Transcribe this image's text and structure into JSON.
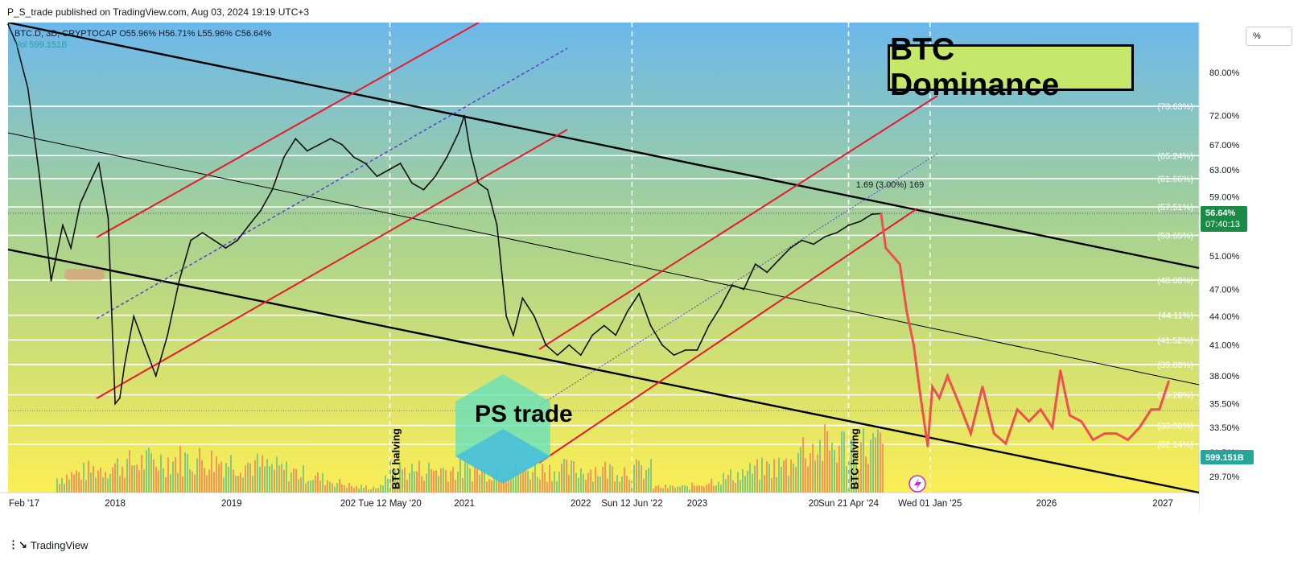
{
  "header": {
    "published": "P_S_trade published on TradingView.com, Aug 03, 2024 19:19 UTC+3"
  },
  "legend": {
    "line1": "BTC.D, 3D, CRYPTOCAP  O55.96%  H56.71%  L55.96%  C56.64%",
    "line2": "Vol  599.151B"
  },
  "title": "BTC Dominance",
  "pct_button": "%",
  "brand": "PS trade",
  "footer": {
    "logo": "⋮↘",
    "name": "TradingView"
  },
  "colors": {
    "bg_top": "#6cb8ec",
    "bg_bottom": "#fbee55",
    "candles": "#111111",
    "projection": "#ef4f4f",
    "channel_red": "#e8192c",
    "trend_black": "#000000",
    "vol_up": "#6fc38a",
    "vol_down": "#f08a5d"
  },
  "chart_data": {
    "type": "line",
    "symbol": "BTC.D",
    "timeframe": "3D",
    "ylim": [
      27.5,
      92
    ],
    "y_scale": "log",
    "x_ticks": [
      "Feb '17",
      "2018",
      "2019",
      "2020",
      "2021",
      "2022",
      "2023",
      "2024",
      "2025",
      "2026",
      "2027"
    ],
    "x_tick_labels_shown": [
      "Feb '17",
      "2018",
      "2019",
      "202",
      "2021",
      "2022",
      "2023",
      "20",
      "2026",
      "2027"
    ],
    "y_ticks": [
      80.0,
      72.0,
      67.0,
      63.0,
      59.0,
      55.0,
      51.0,
      47.0,
      44.0,
      41.0,
      38.0,
      35.5,
      33.5,
      31.5,
      29.7
    ],
    "y_tick_labels": [
      "80.00%",
      "72.00%",
      "67.00%",
      "63.00%",
      "59.00%",
      "",
      "51.00%",
      "47.00%",
      "44.00%",
      "41.00%",
      "38.00%",
      "35.50%",
      "33.50%",
      "31.50%",
      "29.70%"
    ],
    "fib_levels": [
      {
        "label": "(73.63%)",
        "value": 73.63
      },
      {
        "label": "(65.24%)",
        "value": 65.24
      },
      {
        "label": "(61.66%)",
        "value": 61.66
      },
      {
        "label": "(57.51%)",
        "value": 57.51
      },
      {
        "label": "(53.65%)",
        "value": 53.65
      },
      {
        "label": "(48.08%)",
        "value": 48.08
      },
      {
        "label": "(44.11%)",
        "value": 44.11
      },
      {
        "label": "(41.52%)",
        "value": 41.52
      },
      {
        "label": "(39.09%)",
        "value": 39.09
      },
      {
        "label": "(36.28%)",
        "value": 36.28
      },
      {
        "label": "(33.66%)",
        "value": 33.66
      },
      {
        "label": "(32.14%)",
        "value": 32.14
      }
    ],
    "price_marker": {
      "value": 56.64,
      "label": "56.64%",
      "countdown": "07:40:13"
    },
    "volume_marker": {
      "label": "599.151B"
    },
    "measure_label": "1.69 (3.00%) 169",
    "events": [
      {
        "label": "Tue 12 May '20",
        "t": 2020.36,
        "note": "BTC halving"
      },
      {
        "label": "Sun 12 Jun '22",
        "t": 2022.44
      },
      {
        "label": "Sun 21 Apr '24",
        "t": 2024.3,
        "note": "BTC halving"
      },
      {
        "label": "Wed 01 Jan '25",
        "t": 2025.0
      }
    ],
    "series": [
      {
        "kind": "history",
        "x": [
          2017.08,
          2017.15,
          2017.25,
          2017.35,
          2017.45,
          2017.55,
          2017.62,
          2017.7,
          2017.78,
          2017.86,
          2017.94,
          2018.0,
          2018.04,
          2018.08,
          2018.16,
          2018.25,
          2018.35,
          2018.45,
          2018.55,
          2018.65,
          2018.75,
          2018.85,
          2018.95,
          2019.05,
          2019.15,
          2019.25,
          2019.35,
          2019.45,
          2019.55,
          2019.65,
          2019.75,
          2019.85,
          2019.95,
          2020.05,
          2020.15,
          2020.25,
          2020.35,
          2020.45,
          2020.55,
          2020.65,
          2020.75,
          2020.85,
          2020.95,
          2021.0,
          2021.05,
          2021.12,
          2021.2,
          2021.28,
          2021.36,
          2021.42,
          2021.5,
          2021.6,
          2021.7,
          2021.8,
          2021.9,
          2022.0,
          2022.1,
          2022.2,
          2022.3,
          2022.4,
          2022.5,
          2022.6,
          2022.7,
          2022.8,
          2022.9,
          2023.0,
          2023.1,
          2023.2,
          2023.3,
          2023.4,
          2023.5,
          2023.6,
          2023.7,
          2023.8,
          2023.9,
          2024.0,
          2024.1,
          2024.2,
          2024.3,
          2024.4,
          2024.5,
          2024.58
        ],
        "y": [
          90.0,
          86.0,
          77.0,
          62.0,
          48.0,
          55.0,
          52.0,
          58.0,
          61.0,
          64.0,
          56.0,
          35.5,
          36.0,
          39.0,
          44.0,
          41.0,
          38.0,
          42.0,
          48.0,
          53.0,
          54.0,
          53.0,
          52.0,
          53.0,
          55.0,
          57.0,
          60.0,
          65.0,
          68.0,
          66.0,
          67.0,
          68.0,
          67.0,
          65.0,
          64.0,
          62.0,
          63.0,
          64.0,
          61.0,
          60.0,
          62.0,
          65.0,
          69.0,
          72.0,
          66.0,
          61.0,
          60.0,
          55.0,
          44.0,
          42.0,
          46.0,
          44.0,
          41.0,
          40.0,
          41.0,
          40.0,
          42.0,
          43.0,
          42.0,
          44.5,
          46.5,
          43.0,
          41.0,
          40.0,
          40.5,
          40.5,
          43.0,
          45.0,
          47.5,
          47.0,
          50.0,
          49.0,
          50.5,
          52.0,
          53.0,
          52.5,
          53.5,
          54.0,
          55.0,
          55.5,
          56.5,
          56.6
        ]
      },
      {
        "kind": "projection",
        "x": [
          2024.58,
          2024.62,
          2024.68,
          2024.74,
          2024.8,
          2024.86,
          2024.92,
          2024.98,
          2025.02,
          2025.08,
          2025.15,
          2025.25,
          2025.35,
          2025.45,
          2025.55,
          2025.65,
          2025.75,
          2025.85,
          2025.95,
          2026.05,
          2026.12,
          2026.2,
          2026.3,
          2026.4,
          2026.5,
          2026.6,
          2026.7,
          2026.8,
          2026.9,
          2026.97,
          2027.05
        ],
        "y": [
          56.5,
          52.0,
          51.0,
          50.0,
          44.5,
          41.0,
          36.0,
          32.0,
          37.0,
          36.0,
          38.0,
          35.5,
          33.0,
          37.0,
          33.0,
          32.2,
          35.0,
          34.0,
          35.0,
          33.5,
          38.5,
          34.5,
          34.0,
          32.5,
          33.0,
          33.0,
          32.5,
          33.5,
          35.0,
          35.0,
          37.5
        ]
      }
    ]
  }
}
